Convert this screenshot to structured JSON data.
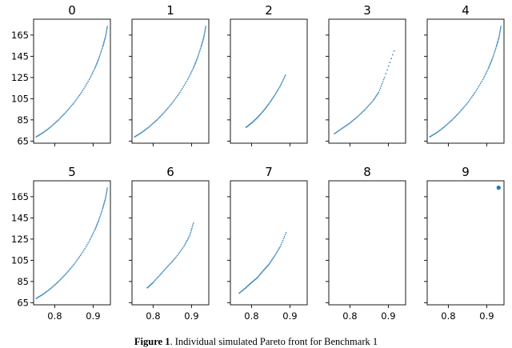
{
  "caption": {
    "label": "Figure 1",
    "text": ". Individual simulated Pareto front for Benchmark 1"
  },
  "chart_data": {
    "type": "scatter",
    "layout": "2x5 grid of small multiples, shared axes",
    "xlim": [
      0.745,
      0.945
    ],
    "ylim": [
      63,
      180
    ],
    "x_ticks": [
      0.8,
      0.9
    ],
    "x_tick_labels": [
      "0.8",
      "0.9"
    ],
    "y_ticks": [
      65,
      85,
      105,
      125,
      145,
      165
    ],
    "y_tick_labels": [
      "65",
      "85",
      "105",
      "125",
      "145",
      "165"
    ],
    "marker_color": "#1f77b4",
    "grid": false,
    "legend": "none",
    "panels": [
      {
        "title": "0",
        "x": [
          0.752,
          0.77,
          0.79,
          0.81,
          0.83,
          0.85,
          0.87,
          0.89,
          0.905,
          0.915,
          0.925,
          0.932,
          0.937
        ],
        "y": [
          69,
          73,
          78.5,
          85,
          92.5,
          101,
          111,
          123,
          134,
          143,
          154,
          163,
          173
        ]
      },
      {
        "title": "1",
        "x": [
          0.752,
          0.77,
          0.79,
          0.81,
          0.83,
          0.85,
          0.87,
          0.89,
          0.905,
          0.915,
          0.925,
          0.932,
          0.937
        ],
        "y": [
          69,
          73,
          78.5,
          85,
          92.5,
          101,
          111,
          123,
          134,
          143,
          154,
          163,
          173
        ]
      },
      {
        "title": "2",
        "x": [
          0.786,
          0.8,
          0.815,
          0.83,
          0.845,
          0.86,
          0.875,
          0.888
        ],
        "y": [
          78,
          82,
          87,
          93,
          100,
          108,
          117,
          127
        ]
      },
      {
        "title": "3",
        "x": [
          0.76,
          0.78,
          0.8,
          0.82,
          0.84,
          0.86,
          0.875,
          0.89,
          0.915
        ],
        "y": [
          72,
          77,
          82,
          88,
          95,
          103,
          111,
          125,
          150
        ]
      },
      {
        "title": "4",
        "x": [
          0.752,
          0.77,
          0.79,
          0.81,
          0.83,
          0.85,
          0.87,
          0.89,
          0.905,
          0.915,
          0.925,
          0.932,
          0.937
        ],
        "y": [
          69,
          73,
          78.5,
          85,
          92.5,
          101,
          111,
          123,
          134,
          143,
          154,
          163,
          173
        ]
      },
      {
        "title": "5",
        "x": [
          0.752,
          0.77,
          0.79,
          0.81,
          0.83,
          0.85,
          0.87,
          0.89,
          0.905,
          0.915,
          0.925,
          0.932,
          0.937
        ],
        "y": [
          69,
          73,
          78.5,
          85,
          92.5,
          101,
          111,
          123,
          134,
          143,
          154,
          163,
          173
        ]
      },
      {
        "title": "6",
        "x": [
          0.785,
          0.8,
          0.82,
          0.84,
          0.86,
          0.88,
          0.895,
          0.905
        ],
        "y": [
          79,
          84,
          92,
          100,
          108,
          118,
          128,
          140
        ]
      },
      {
        "title": "7",
        "x": [
          0.768,
          0.785,
          0.8,
          0.815,
          0.83,
          0.845,
          0.86,
          0.875,
          0.89
        ],
        "y": [
          74,
          79,
          84,
          88.5,
          95,
          101,
          109,
          118,
          131
        ]
      },
      {
        "title": "8",
        "x": [],
        "y": []
      },
      {
        "title": "9",
        "x": [
          0.929,
          0.931,
          0.933,
          0.93,
          0.932
        ],
        "y": [
          173,
          174,
          173.5,
          172.5,
          174.5
        ]
      }
    ]
  }
}
